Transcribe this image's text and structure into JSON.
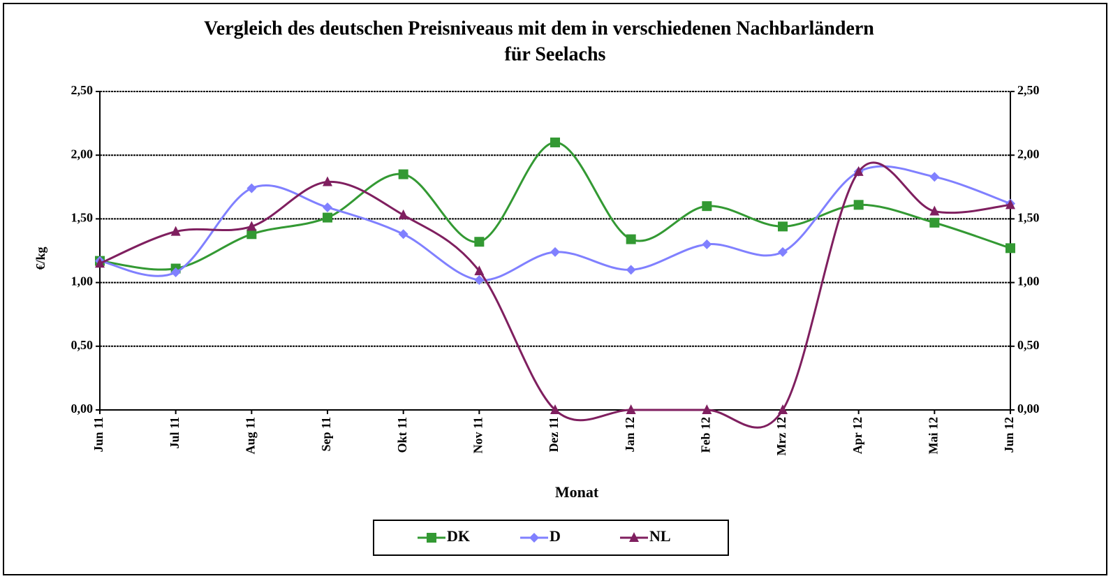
{
  "chart_data": {
    "type": "line",
    "title": [
      "Vergleich des deutschen Preisniveaus mit dem in verschiedenen  Nachbarländern",
      "für Seelachs"
    ],
    "xlabel": "Monat",
    "ylabel": "€/kg",
    "categories": [
      "Jun 11",
      "Jul 11",
      "Aug 11",
      "Sep 11",
      "Okt 11",
      "Nov 11",
      "Dez 11",
      "Jan 12",
      "Feb 12",
      "Mrz 12",
      "Apr 12",
      "Mai 12",
      "Jun 12"
    ],
    "series": [
      {
        "name": "DK",
        "color": "#339933",
        "marker": "square",
        "values": [
          1.17,
          1.11,
          1.38,
          1.51,
          1.85,
          1.32,
          2.1,
          1.34,
          1.6,
          1.44,
          1.61,
          1.47,
          1.27
        ]
      },
      {
        "name": "D",
        "color": "#8080ff",
        "marker": "diamond",
        "values": [
          1.17,
          1.08,
          1.74,
          1.59,
          1.38,
          1.02,
          1.24,
          1.1,
          1.3,
          1.24,
          1.87,
          1.83,
          1.62
        ]
      },
      {
        "name": "NL",
        "color": "#7f1f5f",
        "marker": "triangle",
        "values": [
          1.15,
          1.4,
          1.44,
          1.79,
          1.53,
          1.09,
          0,
          0,
          0,
          0,
          1.87,
          1.56,
          1.61
        ]
      }
    ],
    "ylim": [
      0,
      2.5
    ],
    "yticks": [
      {
        "value": 0,
        "label": "0,00"
      },
      {
        "value": 0.5,
        "label": "0,50"
      },
      {
        "value": 1,
        "label": "1,00"
      },
      {
        "value": 1.5,
        "label": "1,50"
      },
      {
        "value": 2,
        "label": "2,00"
      },
      {
        "value": 2.5,
        "label": "2,50"
      }
    ],
    "y2lim": [
      0,
      2.5
    ],
    "y2ticks": [
      {
        "value": 0,
        "label": "0,00"
      },
      {
        "value": 0.5,
        "label": "0,50"
      },
      {
        "value": 1,
        "label": "1,00"
      },
      {
        "value": 1.5,
        "label": "1,50"
      },
      {
        "value": 2,
        "label": "2,00"
      },
      {
        "value": 2.5,
        "label": "2,50"
      }
    ],
    "grid": true,
    "smooth": true,
    "legend": "bottom"
  }
}
